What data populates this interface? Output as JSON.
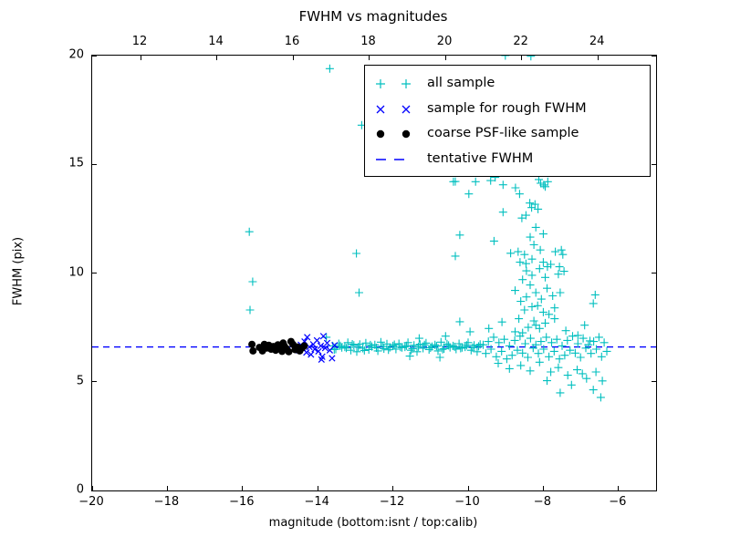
{
  "title": "FWHM vs magnitudes",
  "axes": {
    "xlabel": "magnitude (bottom:isnt / top:calib)",
    "ylabel": "FWHM (pix)"
  },
  "legend": {
    "items": [
      {
        "label": "all sample",
        "marker": "plus",
        "color": "#00bfbf"
      },
      {
        "label": "sample for rough FWHM",
        "marker": "x",
        "color": "#0000ff"
      },
      {
        "label": "coarse PSF-like sample",
        "marker": "dot",
        "color": "#000000"
      },
      {
        "label": "tentative FWHM",
        "marker": "dashed-line",
        "color": "#0000ff"
      }
    ]
  },
  "chart_data": {
    "type": "scatter",
    "title": "FWHM vs magnitudes",
    "xlabel": "magnitude (bottom:isnt / top:calib)",
    "ylabel": "FWHM (pix)",
    "xlim": [
      -20,
      -5
    ],
    "ylim": [
      0,
      20
    ],
    "grid": false,
    "legend_position": "upper right",
    "bottom_ticks": {
      "values": [
        -20,
        -18,
        -16,
        -14,
        -12,
        -10,
        -8,
        -6
      ],
      "labels": [
        "−20",
        "−18",
        "−16",
        "−14",
        "−12",
        "−10",
        "−8",
        "−6"
      ]
    },
    "top_axis": {
      "range": [
        10.73,
        25.53
      ],
      "values": [
        12,
        14,
        16,
        18,
        20,
        22,
        24
      ],
      "labels": [
        "12",
        "14",
        "16",
        "18",
        "20",
        "22",
        "24"
      ]
    },
    "y_ticks": {
      "values": [
        0,
        5,
        10,
        15,
        20
      ],
      "labels": [
        "0",
        "5",
        "10",
        "15",
        "20"
      ]
    },
    "tentative_fwhm": 6.6,
    "series": [
      {
        "name": "all sample",
        "marker": "plus",
        "color": "#00bfbf",
        "points": [
          [
            -13.6,
            6.65
          ],
          [
            -13.52,
            6.5
          ],
          [
            -13.44,
            6.75
          ],
          [
            -13.36,
            6.57
          ],
          [
            -13.28,
            6.6
          ],
          [
            -13.2,
            6.8
          ],
          [
            -13.12,
            6.45
          ],
          [
            -13.04,
            6.68
          ],
          [
            -12.96,
            6.38
          ],
          [
            -12.88,
            6.72
          ],
          [
            -12.8,
            6.54
          ],
          [
            -12.72,
            6.78
          ],
          [
            -12.64,
            6.48
          ],
          [
            -12.56,
            6.62
          ],
          [
            -12.48,
            6.7
          ],
          [
            -12.4,
            6.42
          ],
          [
            -12.32,
            6.82
          ],
          [
            -12.24,
            6.52
          ],
          [
            -12.16,
            6.74
          ],
          [
            -12.08,
            6.58
          ],
          [
            -12.0,
            6.65
          ],
          [
            -11.92,
            6.5
          ],
          [
            -11.84,
            6.75
          ],
          [
            -11.76,
            6.57
          ],
          [
            -11.68,
            6.6
          ],
          [
            -11.6,
            6.8
          ],
          [
            -11.52,
            6.45
          ],
          [
            -11.44,
            6.68
          ],
          [
            -11.36,
            6.38
          ],
          [
            -11.28,
            6.72
          ],
          [
            -11.2,
            6.54
          ],
          [
            -11.12,
            6.78
          ],
          [
            -11.04,
            6.48
          ],
          [
            -10.96,
            6.62
          ],
          [
            -10.88,
            6.7
          ],
          [
            -10.8,
            6.42
          ],
          [
            -10.72,
            6.82
          ],
          [
            -10.64,
            6.52
          ],
          [
            -10.56,
            6.74
          ],
          [
            -10.48,
            6.58
          ],
          [
            -10.4,
            6.65
          ],
          [
            -10.32,
            6.5
          ],
          [
            -10.24,
            6.75
          ],
          [
            -10.16,
            6.57
          ],
          [
            -10.08,
            6.6
          ],
          [
            -10.0,
            6.8
          ],
          [
            -9.92,
            6.45
          ],
          [
            -9.84,
            6.68
          ],
          [
            -9.76,
            6.38
          ],
          [
            -9.68,
            6.72
          ],
          [
            -13.56,
            6.48
          ],
          [
            -13.4,
            6.66
          ],
          [
            -13.24,
            6.55
          ],
          [
            -13.08,
            6.73
          ],
          [
            -12.92,
            6.6
          ],
          [
            -12.76,
            6.44
          ],
          [
            -12.6,
            6.69
          ],
          [
            -12.44,
            6.56
          ],
          [
            -12.28,
            6.63
          ],
          [
            -12.12,
            6.47
          ],
          [
            -11.96,
            6.71
          ],
          [
            -11.8,
            6.59
          ],
          [
            -11.64,
            6.66
          ],
          [
            -11.48,
            6.52
          ],
          [
            -11.32,
            6.61
          ],
          [
            -11.16,
            6.7
          ],
          [
            -11.0,
            6.56
          ],
          [
            -10.84,
            6.64
          ],
          [
            -10.68,
            6.49
          ],
          [
            -10.52,
            6.67
          ],
          [
            -10.36,
            6.61
          ],
          [
            -10.2,
            6.54
          ],
          [
            -10.04,
            6.68
          ],
          [
            -9.88,
            6.57
          ],
          [
            -9.72,
            6.63
          ],
          [
            -9.6,
            6.7
          ],
          [
            -9.53,
            6.3
          ],
          [
            -9.46,
            6.85
          ],
          [
            -9.39,
            6.5
          ],
          [
            -9.32,
            7.05
          ],
          [
            -9.25,
            6.15
          ],
          [
            -9.18,
            6.8
          ],
          [
            -9.11,
            6.4
          ],
          [
            -9.04,
            6.95
          ],
          [
            -8.97,
            6.05
          ],
          [
            -8.9,
            6.65
          ],
          [
            -8.83,
            6.22
          ],
          [
            -8.76,
            6.9
          ],
          [
            -8.69,
            6.45
          ],
          [
            -8.62,
            7.1
          ],
          [
            -8.55,
            6.32
          ],
          [
            -8.48,
            6.75
          ],
          [
            -8.41,
            6.12
          ],
          [
            -8.34,
            7.0
          ],
          [
            -8.27,
            6.55
          ],
          [
            -8.2,
            6.7
          ],
          [
            -8.13,
            6.3
          ],
          [
            -8.06,
            6.85
          ],
          [
            -7.99,
            6.5
          ],
          [
            -7.92,
            7.05
          ],
          [
            -7.85,
            6.15
          ],
          [
            -7.78,
            6.8
          ],
          [
            -7.71,
            6.4
          ],
          [
            -7.64,
            6.95
          ],
          [
            -7.57,
            6.05
          ],
          [
            -7.5,
            6.65
          ],
          [
            -7.43,
            6.22
          ],
          [
            -7.36,
            6.9
          ],
          [
            -7.29,
            6.45
          ],
          [
            -7.22,
            7.1
          ],
          [
            -7.15,
            6.32
          ],
          [
            -7.08,
            6.75
          ],
          [
            -7.01,
            6.12
          ],
          [
            -6.94,
            7.0
          ],
          [
            -6.87,
            6.55
          ],
          [
            -6.8,
            6.7
          ],
          [
            -6.73,
            6.3
          ],
          [
            -6.66,
            6.85
          ],
          [
            -6.59,
            6.5
          ],
          [
            -6.52,
            7.05
          ],
          [
            -6.45,
            6.15
          ],
          [
            -6.38,
            6.8
          ],
          [
            -6.31,
            6.4
          ],
          [
            -9.2,
            5.85
          ],
          [
            -8.9,
            5.6
          ],
          [
            -8.6,
            5.75
          ],
          [
            -8.35,
            5.5
          ],
          [
            -8.1,
            5.9
          ],
          [
            -7.8,
            5.45
          ],
          [
            -7.6,
            5.65
          ],
          [
            -7.35,
            5.3
          ],
          [
            -7.1,
            5.55
          ],
          [
            -6.85,
            5.15
          ],
          [
            -6.6,
            5.45
          ],
          [
            -6.96,
            5.37
          ],
          [
            -6.43,
            5.04
          ],
          [
            -6.47,
            4.28
          ],
          [
            -7.55,
            4.49
          ],
          [
            -6.67,
            4.63
          ],
          [
            -7.9,
            5.05
          ],
          [
            -7.25,
            4.85
          ],
          [
            -9.45,
            7.45
          ],
          [
            -9.1,
            7.75
          ],
          [
            -8.75,
            7.3
          ],
          [
            -8.2,
            7.6
          ],
          [
            -7.7,
            7.9
          ],
          [
            -7.4,
            7.35
          ],
          [
            -6.9,
            7.6
          ],
          [
            -10.22,
            7.76
          ],
          [
            -9.95,
            7.3
          ],
          [
            -10.6,
            7.1
          ],
          [
            -11.3,
            7.0
          ],
          [
            -10.75,
            6.12
          ],
          [
            -11.55,
            6.18
          ],
          [
            -13.77,
            7.05
          ],
          [
            -7.08,
            7.13
          ],
          [
            -6.76,
            6.88
          ],
          [
            -8.55,
            7.25
          ],
          [
            -8.4,
            7.5
          ],
          [
            -8.25,
            7.8
          ],
          [
            -8.1,
            7.45
          ],
          [
            -7.95,
            7.7
          ],
          [
            -7.85,
            8.1
          ],
          [
            -8.5,
            8.3
          ],
          [
            -8.3,
            8.45
          ],
          [
            -8.0,
            8.2
          ],
          [
            -7.7,
            8.4
          ],
          [
            -8.65,
            7.9
          ],
          [
            -8.15,
            8.5
          ],
          [
            -8.6,
            8.7
          ],
          [
            -8.45,
            8.9
          ],
          [
            -8.2,
            9.1
          ],
          [
            -8.05,
            8.8
          ],
          [
            -7.9,
            9.3
          ],
          [
            -7.75,
            8.95
          ],
          [
            -8.35,
            9.45
          ],
          [
            -7.55,
            9.1
          ],
          [
            -8.75,
            9.2
          ],
          [
            -6.67,
            8.6
          ],
          [
            -6.62,
            9.0
          ],
          [
            -8.55,
            9.7
          ],
          [
            -8.3,
            9.9
          ],
          [
            -8.1,
            10.2
          ],
          [
            -7.95,
            9.8
          ],
          [
            -7.8,
            10.4
          ],
          [
            -8.45,
            10.1
          ],
          [
            -7.6,
            9.95
          ],
          [
            -8.62,
            10.5
          ],
          [
            -8.0,
            10.5
          ],
          [
            -7.89,
            10.29
          ],
          [
            -7.57,
            10.29
          ],
          [
            -7.45,
            10.08
          ],
          [
            -8.46,
            10.43
          ],
          [
            -8.67,
            10.98
          ],
          [
            -8.87,
            10.91
          ],
          [
            -8.5,
            10.85
          ],
          [
            -8.3,
            10.64
          ],
          [
            -8.08,
            11.06
          ],
          [
            -7.52,
            11.06
          ],
          [
            -7.48,
            10.85
          ],
          [
            -9.31,
            11.47
          ],
          [
            -10.22,
            11.75
          ],
          [
            -8.25,
            11.3
          ],
          [
            -7.68,
            10.98
          ],
          [
            -8.46,
            12.66
          ],
          [
            -8.57,
            12.53
          ],
          [
            -8.2,
            12.1
          ],
          [
            -8.0,
            11.8
          ],
          [
            -8.35,
            11.65
          ],
          [
            -10.34,
            10.78
          ],
          [
            -8.31,
            13.01
          ],
          [
            -8.22,
            13.16
          ],
          [
            -8.14,
            12.94
          ],
          [
            -8.36,
            13.22
          ],
          [
            -9.07,
            12.8
          ],
          [
            -9.28,
            14.4
          ],
          [
            -9.07,
            14.06
          ],
          [
            -8.74,
            13.92
          ],
          [
            -8.63,
            13.64
          ],
          [
            -9.98,
            13.64
          ],
          [
            -8.07,
            14.13
          ],
          [
            -7.99,
            14.05
          ],
          [
            -7.95,
            13.97
          ],
          [
            -10.34,
            14.21
          ],
          [
            -9.8,
            14.2
          ],
          [
            -8.12,
            14.3
          ],
          [
            -7.88,
            14.2
          ],
          [
            -10.39,
            14.2
          ],
          [
            -9.4,
            14.25
          ],
          [
            -13.68,
            19.4
          ],
          [
            -9.01,
            20.0
          ],
          [
            -8.33,
            19.97
          ],
          [
            -12.83,
            16.8
          ],
          [
            -15.82,
            11.9
          ],
          [
            -15.73,
            9.6
          ],
          [
            -15.8,
            8.3
          ],
          [
            -12.97,
            10.9
          ],
          [
            -12.9,
            9.1
          ]
        ]
      },
      {
        "name": "sample for rough FWHM",
        "marker": "x",
        "color": "#0000ff",
        "points": [
          [
            -14.55,
            6.62
          ],
          [
            -14.5,
            6.45
          ],
          [
            -14.45,
            6.7
          ],
          [
            -14.4,
            6.55
          ],
          [
            -14.35,
            6.85
          ],
          [
            -14.3,
            6.35
          ],
          [
            -14.28,
            7.05
          ],
          [
            -14.22,
            6.6
          ],
          [
            -14.18,
            6.25
          ],
          [
            -14.12,
            6.72
          ],
          [
            -14.08,
            6.5
          ],
          [
            -14.02,
            6.9
          ],
          [
            -13.98,
            6.4
          ],
          [
            -13.92,
            6.65
          ],
          [
            -13.88,
            6.15
          ],
          [
            -13.85,
            7.1
          ],
          [
            -13.8,
            6.55
          ],
          [
            -13.75,
            6.78
          ],
          [
            -13.68,
            6.45
          ],
          [
            -13.62,
            6.08
          ],
          [
            -13.55,
            6.68
          ],
          [
            -13.9,
            6.02
          ]
        ]
      },
      {
        "name": "coarse PSF-like sample",
        "marker": "dot",
        "color": "#000000",
        "points": [
          [
            -15.75,
            6.72
          ],
          [
            -15.72,
            6.42
          ],
          [
            -15.55,
            6.58
          ],
          [
            -15.47,
            6.42
          ],
          [
            -15.42,
            6.72
          ],
          [
            -15.36,
            6.55
          ],
          [
            -15.3,
            6.68
          ],
          [
            -15.24,
            6.5
          ],
          [
            -15.18,
            6.62
          ],
          [
            -15.12,
            6.45
          ],
          [
            -15.06,
            6.7
          ],
          [
            -15.0,
            6.55
          ],
          [
            -14.95,
            6.4
          ],
          [
            -14.92,
            6.78
          ],
          [
            -14.89,
            6.65
          ],
          [
            -14.83,
            6.52
          ],
          [
            -14.77,
            6.38
          ],
          [
            -14.71,
            6.85
          ],
          [
            -14.66,
            6.72
          ],
          [
            -14.6,
            6.48
          ],
          [
            -14.54,
            6.6
          ],
          [
            -14.48,
            6.42
          ],
          [
            -14.42,
            6.55
          ],
          [
            -14.36,
            6.65
          ]
        ]
      },
      {
        "name": "tentative FWHM",
        "type": "hline",
        "marker": "dashed-line",
        "color": "#0000ff",
        "y": 6.6
      }
    ]
  }
}
